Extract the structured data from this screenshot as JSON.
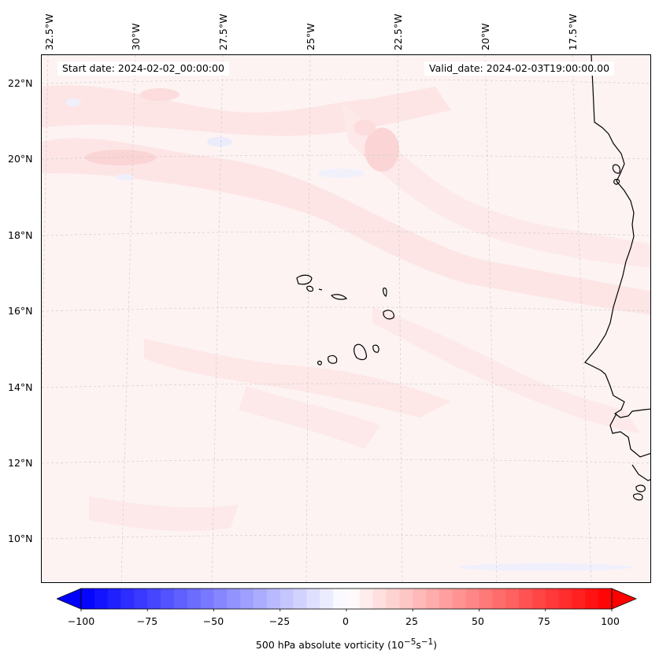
{
  "top_axis": {
    "lon_labels": [
      "32.5°W",
      "30°W",
      "27.5°W",
      "25°W",
      "22.5°W",
      "20°W",
      "17.5°W"
    ]
  },
  "left_axis": {
    "lat_labels": [
      "22°N",
      "20°N",
      "18°N",
      "16°N",
      "14°N",
      "12°N",
      "10°N"
    ]
  },
  "header": {
    "start_date": "Start date: 2024-02-02_00:00:00",
    "valid_date": "Valid_date: 2024-02-03T19:00:00.00"
  },
  "colorbar": {
    "tick_labels": [
      "−100",
      "−75",
      "−50",
      "−25",
      "0",
      "25",
      "50",
      "75",
      "100"
    ],
    "title_prefix": "500 hPa absolute vorticity (10",
    "title_exp1": "−5",
    "title_mid": "s",
    "title_exp2": "−1",
    "title_suffix": ")",
    "vmin": -100,
    "vmax": 100,
    "colormap": "bwr",
    "extend": "both"
  },
  "colors": {
    "negative_max": "#0000ff",
    "zero": "#ffffff",
    "positive_max": "#ff0000",
    "coastline": "#000000"
  }
}
